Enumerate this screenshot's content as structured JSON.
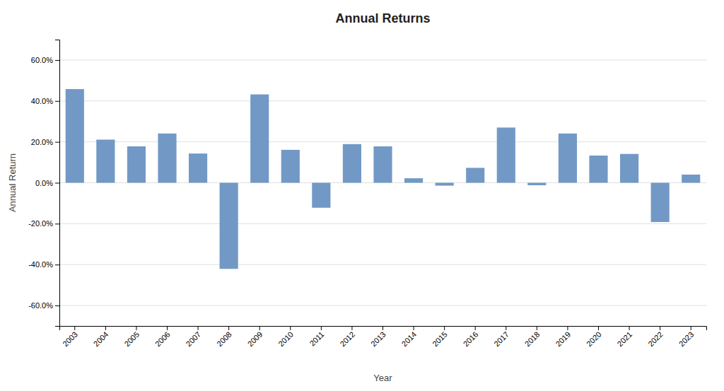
{
  "chart_data": {
    "type": "bar",
    "title": "Annual Returns",
    "x_label": "Year",
    "y_label": "Annual Return",
    "categories": [
      "2003",
      "2004",
      "2005",
      "2006",
      "2007",
      "2008",
      "2009",
      "2010",
      "2011",
      "2012",
      "2013",
      "2014",
      "2015",
      "2016",
      "2017",
      "2018",
      "2019",
      "2020",
      "2021",
      "2022",
      "2023"
    ],
    "values": [
      0.458,
      0.211,
      0.178,
      0.241,
      0.143,
      -0.421,
      0.432,
      0.161,
      -0.122,
      0.189,
      0.178,
      0.022,
      -0.014,
      0.073,
      0.27,
      -0.012,
      0.241,
      0.133,
      0.141,
      -0.192,
      0.04
    ],
    "color": "#7299c6",
    "ylim": [
      -0.7,
      0.7
    ],
    "yticks": [
      {
        "value": -0.6,
        "label": "-60.0%"
      },
      {
        "value": -0.4,
        "label": "-40.0%"
      },
      {
        "value": -0.2,
        "label": "-20.0%"
      },
      {
        "value": 0.0,
        "label": "0.0%"
      },
      {
        "value": 0.2,
        "label": "20.0%"
      },
      {
        "value": 0.4,
        "label": "40.0%"
      },
      {
        "value": 0.6,
        "label": "60.0%"
      }
    ],
    "grid": true
  }
}
